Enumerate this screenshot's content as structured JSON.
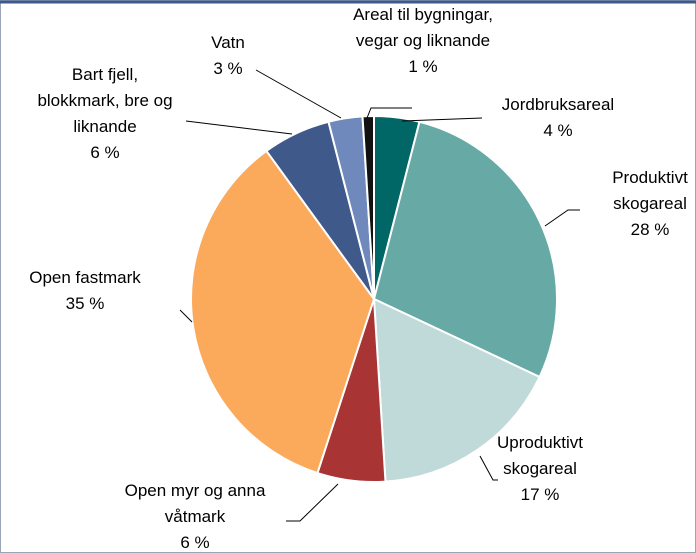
{
  "chart_data": {
    "type": "pie",
    "categories": [
      "Jordbruksareal",
      "Produktivt\nskogareal",
      "Uproduktivt\nskogareal",
      "Open myr og anna\nvåtmark",
      "Open fastmark",
      "Bart fjell,\nblokkmark, bre og\nliknande",
      "Vatn",
      "Areal til bygningar,\nvegar og liknande"
    ],
    "values": [
      4,
      28,
      17,
      6,
      35,
      6,
      3,
      1
    ],
    "value_labels": [
      "4 %",
      "28 %",
      "17 %",
      "6 %",
      "35 %",
      "6 %",
      "3 %",
      "1 %"
    ],
    "colors": [
      "#006666",
      "#66a9a5",
      "#c0dad9",
      "#a83434",
      "#fbaa5c",
      "#3f5a8a",
      "#7089bd",
      "#111111"
    ]
  }
}
